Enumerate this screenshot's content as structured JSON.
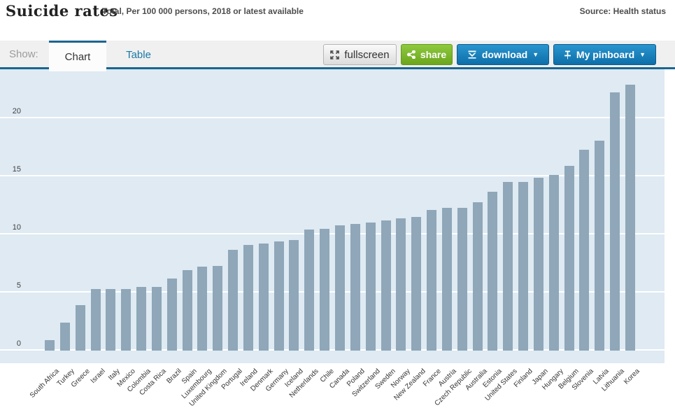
{
  "header": {
    "title": "Suicide rates",
    "subtitle": "Total, Per 100 000 persons, 2018 or latest available",
    "source": "Source: Health status"
  },
  "toolbar": {
    "show_label": "Show:",
    "tabs": {
      "chart": "Chart",
      "table": "Table"
    },
    "buttons": {
      "fullscreen": "fullscreen",
      "share": "share",
      "download": "download",
      "pinboard": "My pinboard"
    },
    "icons": {
      "caret_down": "▼"
    }
  },
  "colors": {
    "accent_blue": "#1a6591",
    "button_blue": "#1583c0",
    "button_green": "#76b22d",
    "bar": "#8fa7b8",
    "plot_background": "#dfeaf3"
  },
  "chart_data": {
    "type": "bar",
    "title": "Suicide rates",
    "subtitle": "Total, Per 100 000 persons, 2018 or latest available",
    "xlabel": "",
    "ylabel": "Per 100 000 persons",
    "ylim": [
      0,
      24
    ],
    "yticks": [
      0,
      5,
      10,
      15,
      20
    ],
    "grid": true,
    "legend": false,
    "categories": [
      "South Africa",
      "Turkey",
      "Greece",
      "Israel",
      "Italy",
      "Mexico",
      "Colombia",
      "Costa Rica",
      "Brazil",
      "Spain",
      "Luxembourg",
      "United Kingdom",
      "Portugal",
      "Ireland",
      "Denmark",
      "Germany",
      "Iceland",
      "Netherlands",
      "Chile",
      "Canada",
      "Poland",
      "Switzerland",
      "Sweden",
      "Norway",
      "New Zealand",
      "France",
      "Austria",
      "Czech Republic",
      "Australia",
      "Estonia",
      "United States",
      "Finland",
      "Japan",
      "Hungary",
      "Belgium",
      "Slovenia",
      "Latvia",
      "Lithuania",
      "Korea"
    ],
    "values": [
      0.9,
      2.4,
      3.9,
      5.3,
      5.3,
      5.3,
      5.5,
      5.5,
      6.2,
      6.9,
      7.2,
      7.3,
      8.7,
      9.1,
      9.2,
      9.4,
      9.5,
      10.4,
      10.5,
      10.8,
      10.9,
      11.0,
      11.2,
      11.4,
      11.5,
      12.1,
      12.3,
      12.3,
      12.8,
      13.7,
      14.5,
      14.5,
      14.9,
      15.1,
      15.9,
      17.3,
      18.1,
      22.2,
      22.9
    ]
  }
}
